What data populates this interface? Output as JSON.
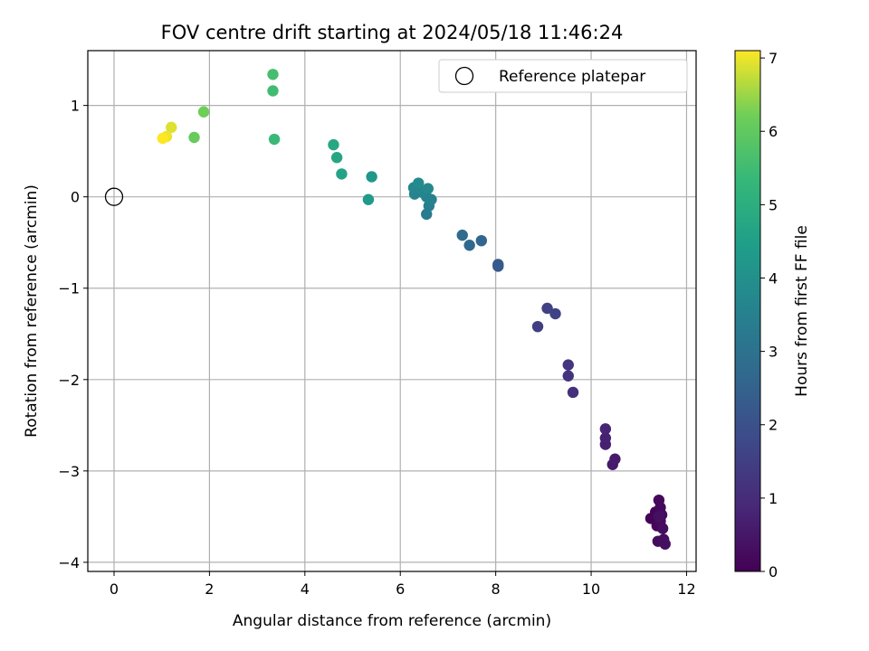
{
  "chart_data": {
    "type": "scatter",
    "title": "FOV centre drift starting at 2024/05/18 11:46:24",
    "xlabel": "Angular distance from reference (arcmin)",
    "ylabel": "Rotation from reference (arcmin)",
    "xlim": [
      -0.55,
      12.2
    ],
    "ylim": [
      -4.1,
      1.6
    ],
    "xticks": [
      0,
      2,
      4,
      6,
      8,
      10,
      12
    ],
    "yticks": [
      -4,
      -3,
      -2,
      -1,
      0,
      1
    ],
    "xtick_labels": [
      "0",
      "2",
      "4",
      "6",
      "8",
      "10",
      "12"
    ],
    "ytick_labels": [
      "−4",
      "−3",
      "−2",
      "−1",
      "0",
      "1"
    ],
    "grid": true,
    "legend": {
      "placement": "top-right",
      "entries": [
        "Reference platepar"
      ]
    },
    "reference_point": {
      "x": 0,
      "y": 0,
      "marker": "open circle",
      "label": "Reference platepar"
    },
    "colorbar": {
      "label": "Hours from first FF file",
      "range": [
        0,
        7.1
      ],
      "ticks": [
        0,
        1,
        2,
        3,
        4,
        5,
        6,
        7
      ],
      "tick_labels": [
        "0",
        "1",
        "2",
        "3",
        "4",
        "5",
        "6",
        "7"
      ],
      "colormap": "viridis"
    },
    "points": [
      {
        "x": 11.25,
        "y": -3.52,
        "t": 0.05
      },
      {
        "x": 11.35,
        "y": -3.45,
        "t": 0.1
      },
      {
        "x": 11.38,
        "y": -3.6,
        "t": 0.12
      },
      {
        "x": 11.42,
        "y": -3.32,
        "t": 0.15
      },
      {
        "x": 11.45,
        "y": -3.4,
        "t": 0.18
      },
      {
        "x": 11.45,
        "y": -3.55,
        "t": 0.2
      },
      {
        "x": 11.48,
        "y": -3.48,
        "t": 0.22
      },
      {
        "x": 11.4,
        "y": -3.77,
        "t": 0.25
      },
      {
        "x": 11.5,
        "y": -3.63,
        "t": 0.28
      },
      {
        "x": 11.52,
        "y": -3.75,
        "t": 0.3
      },
      {
        "x": 11.55,
        "y": -3.8,
        "t": 0.32
      },
      {
        "x": 11.42,
        "y": -3.5,
        "t": 0.35
      },
      {
        "x": 10.45,
        "y": -2.93,
        "t": 0.55
      },
      {
        "x": 10.5,
        "y": -2.87,
        "t": 0.6
      },
      {
        "x": 10.3,
        "y": -2.71,
        "t": 0.7
      },
      {
        "x": 10.3,
        "y": -2.64,
        "t": 0.75
      },
      {
        "x": 10.3,
        "y": -2.54,
        "t": 0.8
      },
      {
        "x": 9.62,
        "y": -2.14,
        "t": 1.1
      },
      {
        "x": 9.52,
        "y": -1.96,
        "t": 1.2
      },
      {
        "x": 9.52,
        "y": -1.84,
        "t": 1.25
      },
      {
        "x": 8.88,
        "y": -1.42,
        "t": 1.5
      },
      {
        "x": 9.08,
        "y": -1.22,
        "t": 1.55
      },
      {
        "x": 9.25,
        "y": -1.28,
        "t": 1.6
      },
      {
        "x": 8.05,
        "y": -0.76,
        "t": 2.2
      },
      {
        "x": 8.05,
        "y": -0.74,
        "t": 2.25
      },
      {
        "x": 7.7,
        "y": -0.48,
        "t": 2.6
      },
      {
        "x": 7.45,
        "y": -0.53,
        "t": 2.65
      },
      {
        "x": 7.3,
        "y": -0.42,
        "t": 2.75
      },
      {
        "x": 6.55,
        "y": -0.19,
        "t": 3.3
      },
      {
        "x": 6.6,
        "y": -0.1,
        "t": 3.4
      },
      {
        "x": 6.65,
        "y": -0.03,
        "t": 3.5
      },
      {
        "x": 6.55,
        "y": 0.0,
        "t": 3.55
      },
      {
        "x": 6.3,
        "y": 0.03,
        "t": 3.6
      },
      {
        "x": 6.45,
        "y": 0.05,
        "t": 3.65
      },
      {
        "x": 6.28,
        "y": 0.1,
        "t": 3.7
      },
      {
        "x": 6.58,
        "y": 0.09,
        "t": 3.75
      },
      {
        "x": 6.38,
        "y": 0.15,
        "t": 3.8
      },
      {
        "x": 5.4,
        "y": 0.22,
        "t": 4.2
      },
      {
        "x": 5.33,
        "y": -0.03,
        "t": 4.3
      },
      {
        "x": 4.77,
        "y": 0.25,
        "t": 4.6
      },
      {
        "x": 4.67,
        "y": 0.43,
        "t": 4.7
      },
      {
        "x": 4.6,
        "y": 0.57,
        "t": 4.8
      },
      {
        "x": 3.36,
        "y": 0.63,
        "t": 5.4
      },
      {
        "x": 3.33,
        "y": 1.16,
        "t": 5.5
      },
      {
        "x": 3.33,
        "y": 1.34,
        "t": 5.6
      },
      {
        "x": 1.68,
        "y": 0.65,
        "t": 6.1
      },
      {
        "x": 1.88,
        "y": 0.93,
        "t": 6.2
      },
      {
        "x": 1.2,
        "y": 0.76,
        "t": 6.9
      },
      {
        "x": 1.1,
        "y": 0.66,
        "t": 7.0
      },
      {
        "x": 1.02,
        "y": 0.64,
        "t": 7.1
      }
    ]
  }
}
